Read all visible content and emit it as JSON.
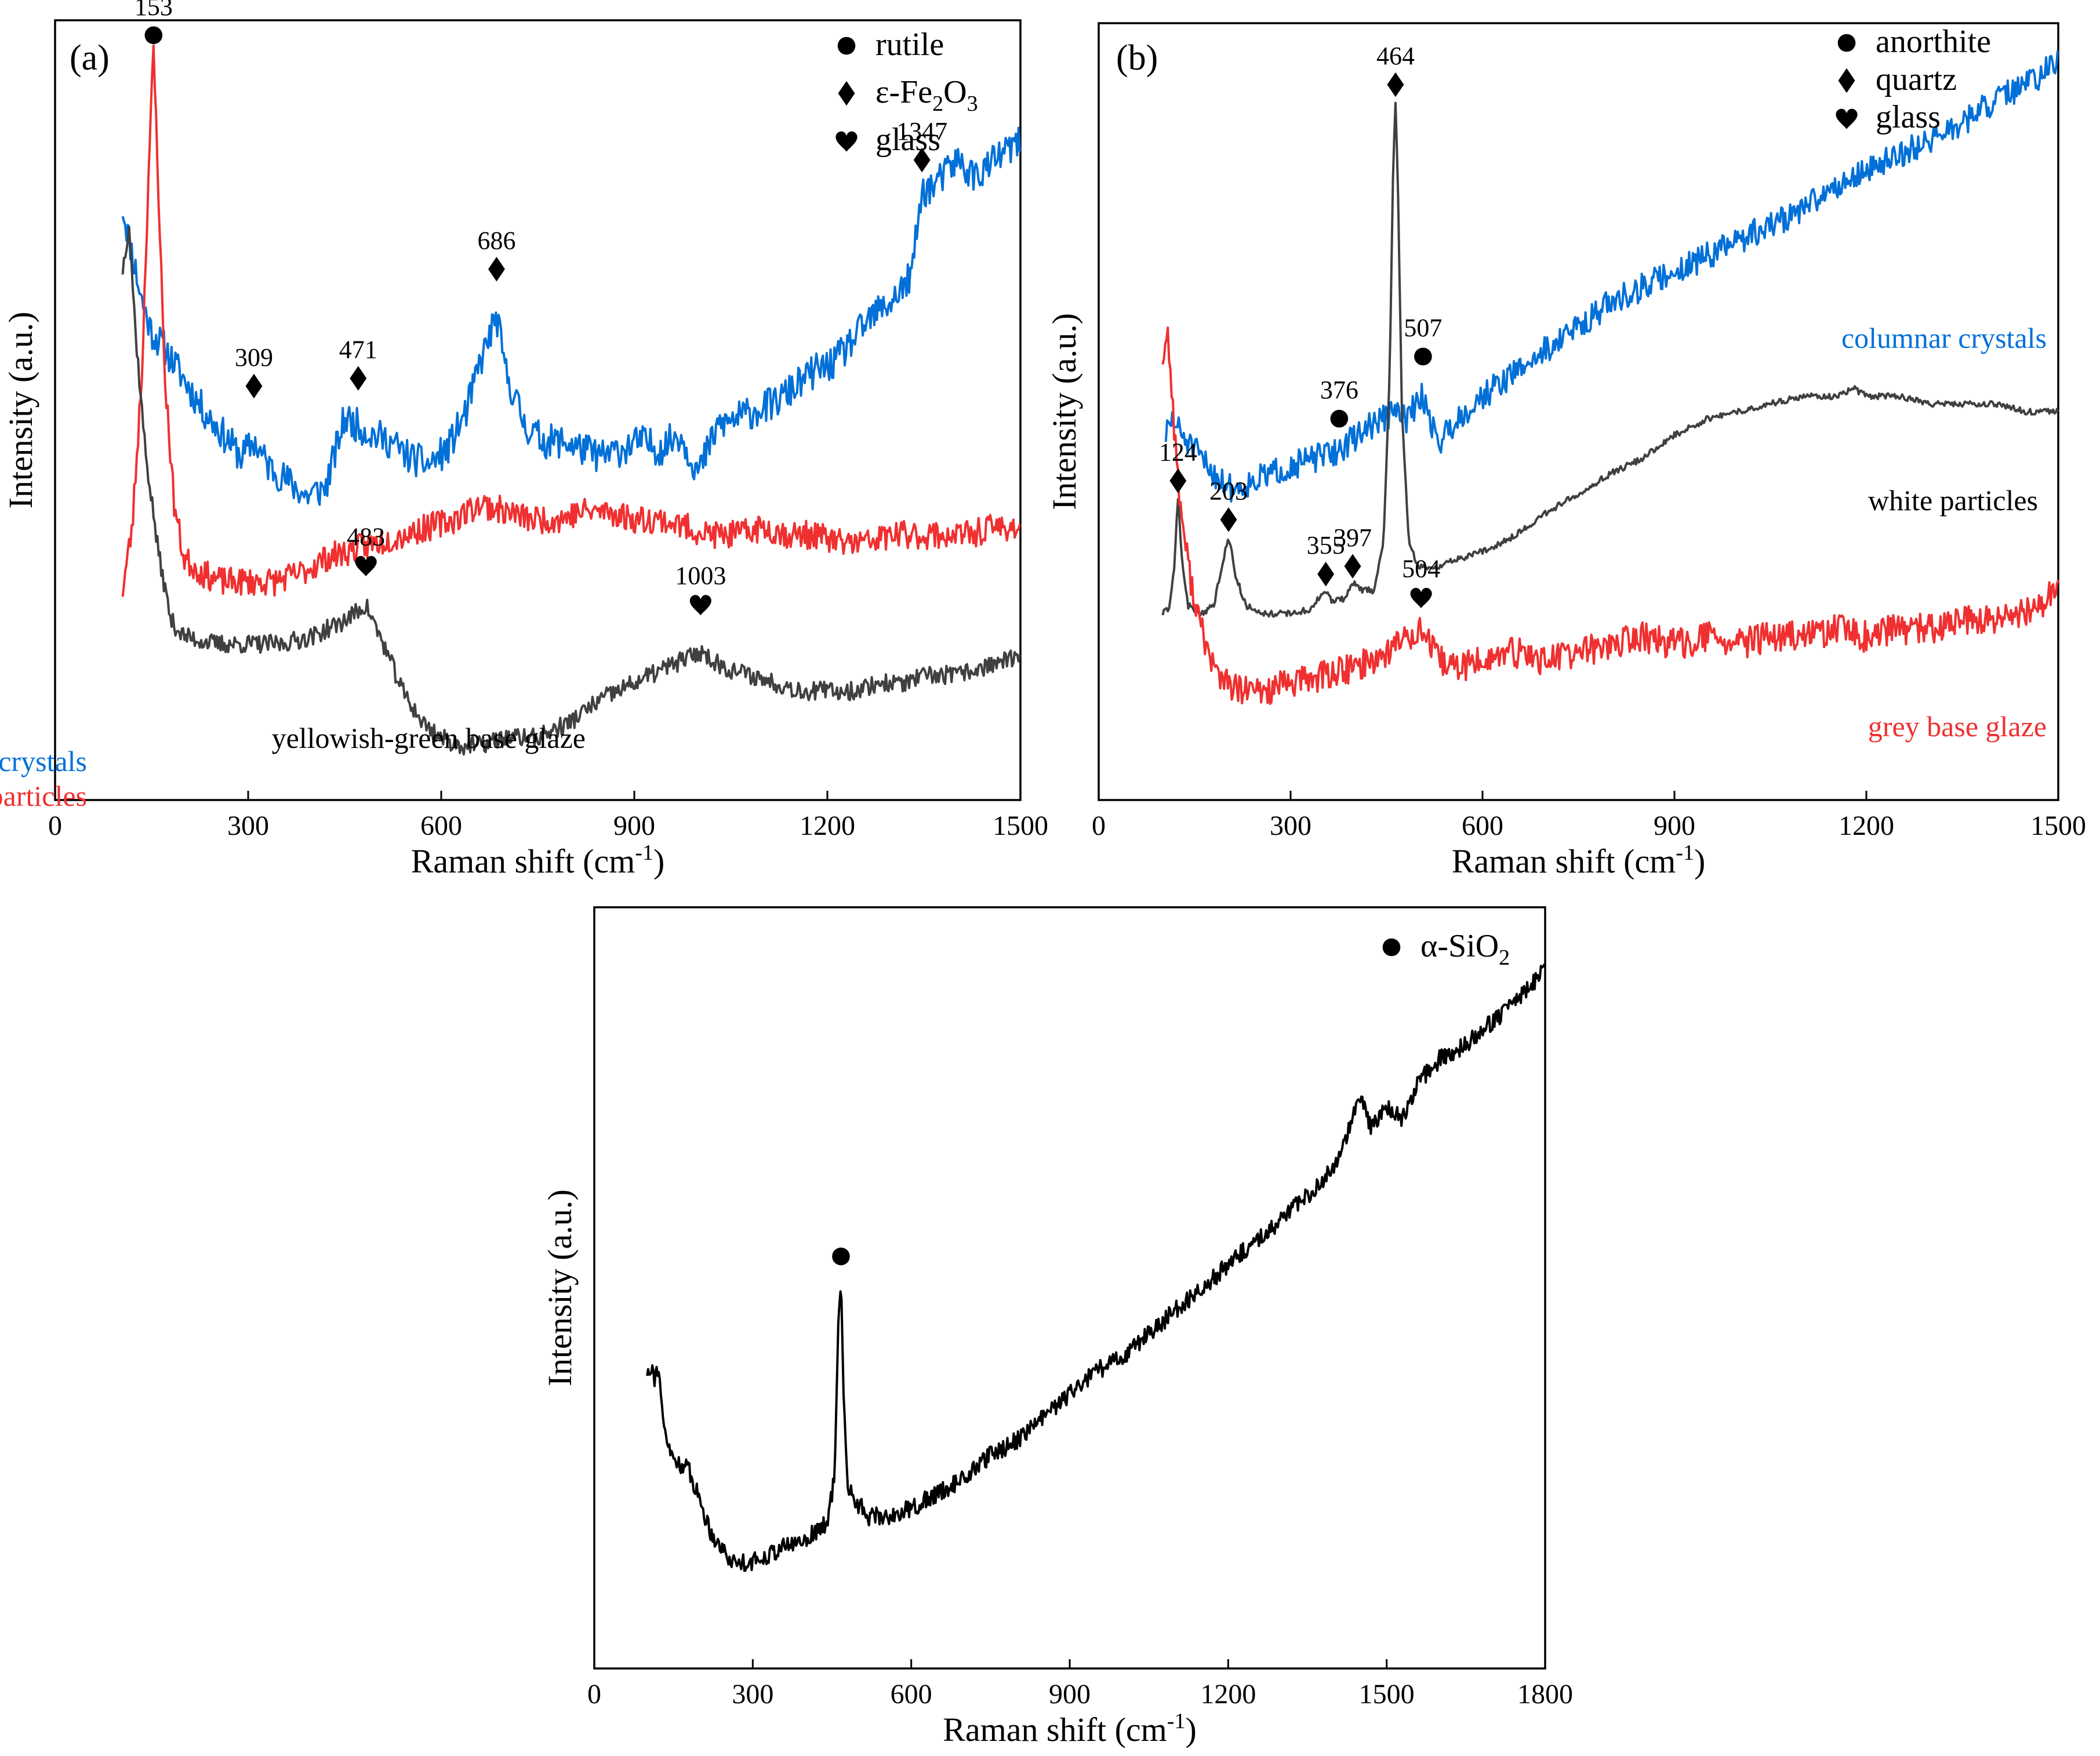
{
  "chart_data": [
    {
      "panel_label": "(a)",
      "type": "line",
      "xlabel": "Raman shift (cm",
      "xlabel_sup": "-1",
      "xlabel_end": ")",
      "ylabel": "Intensity (a.u.)",
      "xlim": [
        0,
        1500
      ],
      "xticks": [
        0,
        300,
        600,
        900,
        1200,
        1500
      ],
      "legend": [
        {
          "marker": "circle",
          "label": "rutile"
        },
        {
          "marker": "diamond",
          "label": "ε-Fe",
          "sub1": "2",
          "mid": "O",
          "sub2": "3"
        },
        {
          "marker": "heart",
          "label": "glass"
        }
      ],
      "series": [
        {
          "name": "rusty plate-like crystals",
          "color": "#0070d8",
          "x": [
            105,
            120,
            135,
            150,
            170,
            200,
            230,
            260,
            290,
            309,
            330,
            360,
            390,
            420,
            450,
            471,
            490,
            520,
            550,
            580,
            610,
            640,
            660,
            686,
            700,
            730,
            760,
            790,
            820,
            850,
            880,
            910,
            940,
            970,
            1000,
            1030,
            1060,
            1090,
            1120,
            1150,
            1180,
            1210,
            1240,
            1270,
            1300,
            1330,
            1347,
            1370,
            1400,
            1430,
            1460,
            1490,
            1500
          ],
          "y": [
            0.76,
            0.7,
            0.64,
            0.6,
            0.58,
            0.54,
            0.5,
            0.47,
            0.44,
            0.46,
            0.43,
            0.41,
            0.39,
            0.4,
            0.49,
            0.48,
            0.47,
            0.46,
            0.44,
            0.43,
            0.45,
            0.5,
            0.56,
            0.62,
            0.55,
            0.48,
            0.46,
            0.46,
            0.45,
            0.44,
            0.45,
            0.46,
            0.45,
            0.47,
            0.42,
            0.48,
            0.49,
            0.5,
            0.51,
            0.53,
            0.55,
            0.56,
            0.59,
            0.62,
            0.64,
            0.67,
            0.78,
            0.79,
            0.82,
            0.8,
            0.82,
            0.84,
            0.84
          ],
          "noise": 0.022,
          "seed": 11
        },
        {
          "name": "dark red granular particles",
          "color": "#f03030",
          "x": [
            105,
            120,
            135,
            145,
            153,
            160,
            170,
            185,
            200,
            230,
            260,
            300,
            340,
            380,
            420,
            460,
            500,
            540,
            580,
            620,
            660,
            700,
            740,
            780,
            820,
            860,
            900,
            940,
            980,
            1020,
            1060,
            1100,
            1140,
            1180,
            1220,
            1260,
            1300,
            1340,
            1380,
            1420,
            1460,
            1500
          ],
          "y": [
            0.27,
            0.35,
            0.55,
            0.8,
            0.96,
            0.8,
            0.55,
            0.38,
            0.31,
            0.29,
            0.28,
            0.28,
            0.28,
            0.29,
            0.31,
            0.32,
            0.33,
            0.34,
            0.35,
            0.36,
            0.38,
            0.37,
            0.36,
            0.36,
            0.37,
            0.37,
            0.36,
            0.36,
            0.35,
            0.34,
            0.34,
            0.35,
            0.34,
            0.34,
            0.33,
            0.33,
            0.34,
            0.34,
            0.34,
            0.34,
            0.35,
            0.35
          ],
          "noise": 0.018,
          "seed": 23
        },
        {
          "name": "yellowish-green base glaze",
          "color": "#404040",
          "x": [
            105,
            115,
            125,
            140,
            160,
            180,
            200,
            250,
            300,
            350,
            400,
            450,
            483,
            510,
            540,
            570,
            600,
            630,
            660,
            700,
            750,
            800,
            850,
            900,
            950,
            1003,
            1040,
            1080,
            1120,
            1160,
            1200,
            1240,
            1280,
            1320,
            1360,
            1400,
            1440,
            1480,
            1500
          ],
          "y": [
            0.68,
            0.74,
            0.6,
            0.45,
            0.32,
            0.23,
            0.21,
            0.2,
            0.2,
            0.2,
            0.21,
            0.23,
            0.25,
            0.2,
            0.14,
            0.1,
            0.08,
            0.07,
            0.07,
            0.08,
            0.08,
            0.1,
            0.13,
            0.15,
            0.17,
            0.19,
            0.17,
            0.16,
            0.15,
            0.14,
            0.14,
            0.14,
            0.15,
            0.15,
            0.16,
            0.16,
            0.17,
            0.18,
            0.18
          ],
          "noise": 0.012,
          "seed": 37
        }
      ],
      "series_labels": [
        {
          "text": "rusty plate-like crystals",
          "color": "#0070d8"
        },
        {
          "text": "dark red granular particles",
          "color": "#f03030"
        },
        {
          "text": "yellowish-green base glaze",
          "color": "#000000"
        }
      ],
      "annotations": [
        {
          "x": 153,
          "y": 0.96,
          "marker": "circle",
          "label": "153"
        },
        {
          "x": 309,
          "y": 0.51,
          "marker": "diamond",
          "label": "309"
        },
        {
          "x": 471,
          "y": 0.52,
          "marker": "diamond",
          "label": "471"
        },
        {
          "x": 686,
          "y": 0.66,
          "marker": "diamond",
          "label": "686"
        },
        {
          "x": 1347,
          "y": 0.8,
          "marker": "diamond",
          "label": "1347"
        },
        {
          "x": 483,
          "y": 0.28,
          "marker": "heart",
          "label": "483"
        },
        {
          "x": 1003,
          "y": 0.23,
          "marker": "heart",
          "label": "1003"
        }
      ]
    },
    {
      "panel_label": "(b)",
      "type": "line",
      "xlabel": "Raman shift (cm",
      "xlabel_sup": "-1",
      "xlabel_end": ")",
      "ylabel": "Intensity (a.u.)",
      "xlim": [
        0,
        1500
      ],
      "xticks": [
        0,
        300,
        600,
        900,
        1200,
        1500
      ],
      "legend": [
        {
          "marker": "circle",
          "label": "anorthite"
        },
        {
          "marker": "diamond",
          "label": "quartz"
        },
        {
          "marker": "heart",
          "label": "glass"
        }
      ],
      "series": [
        {
          "name": "columnar crystals",
          "color": "#0070d8",
          "x": [
            105,
            115,
            130,
            150,
            180,
            210,
            240,
            270,
            300,
            340,
            376,
            420,
            464,
            480,
            507,
            530,
            560,
            600,
            650,
            700,
            750,
            800,
            850,
            900,
            950,
            1000,
            1050,
            1100,
            1150,
            1200,
            1250,
            1300,
            1350,
            1400,
            1450,
            1500
          ],
          "y": [
            0.47,
            0.49,
            0.47,
            0.45,
            0.42,
            0.4,
            0.41,
            0.42,
            0.43,
            0.44,
            0.45,
            0.48,
            0.5,
            0.49,
            0.52,
            0.46,
            0.49,
            0.52,
            0.55,
            0.58,
            0.61,
            0.64,
            0.66,
            0.68,
            0.7,
            0.72,
            0.74,
            0.76,
            0.79,
            0.81,
            0.83,
            0.85,
            0.87,
            0.9,
            0.92,
            0.95
          ],
          "noise": 0.018,
          "seed": 51
        },
        {
          "name": "white particles",
          "color": "#404040",
          "x": [
            100,
            110,
            118,
            124,
            130,
            140,
            160,
            180,
            192,
            203,
            214,
            230,
            260,
            300,
            330,
            345,
            355,
            365,
            385,
            397,
            410,
            430,
            445,
            455,
            460,
            464,
            468,
            474,
            485,
            500,
            530,
            560,
            600,
            650,
            700,
            760,
            800,
            850,
            900,
            950,
            1000,
            1050,
            1100,
            1150,
            1180,
            1200,
            1250,
            1300,
            1350,
            1400,
            1450,
            1500
          ],
          "y": [
            0.24,
            0.245,
            0.3,
            0.39,
            0.31,
            0.25,
            0.24,
            0.25,
            0.3,
            0.34,
            0.29,
            0.25,
            0.24,
            0.24,
            0.245,
            0.26,
            0.27,
            0.255,
            0.26,
            0.28,
            0.27,
            0.27,
            0.33,
            0.55,
            0.8,
            0.9,
            0.78,
            0.5,
            0.33,
            0.3,
            0.3,
            0.31,
            0.32,
            0.34,
            0.37,
            0.4,
            0.42,
            0.44,
            0.47,
            0.49,
            0.5,
            0.51,
            0.52,
            0.52,
            0.53,
            0.52,
            0.52,
            0.51,
            0.51,
            0.51,
            0.5,
            0.5
          ],
          "noise": 0.004,
          "seed": 63
        },
        {
          "name": "grey base glaze",
          "color": "#f03030",
          "x": [
            100,
            108,
            115,
            125,
            140,
            160,
            180,
            200,
            220,
            260,
            300,
            350,
            400,
            450,
            480,
            504,
            530,
            560,
            600,
            650,
            700,
            750,
            800,
            850,
            900,
            950,
            1000,
            1050,
            1100,
            1150,
            1200,
            1250,
            1300,
            1350,
            1400,
            1450,
            1500
          ],
          "y": [
            0.57,
            0.6,
            0.52,
            0.4,
            0.3,
            0.22,
            0.17,
            0.15,
            0.14,
            0.14,
            0.15,
            0.16,
            0.17,
            0.19,
            0.21,
            0.22,
            0.18,
            0.17,
            0.18,
            0.19,
            0.18,
            0.19,
            0.2,
            0.21,
            0.2,
            0.21,
            0.2,
            0.21,
            0.21,
            0.22,
            0.21,
            0.22,
            0.22,
            0.23,
            0.23,
            0.24,
            0.27
          ],
          "noise": 0.02,
          "seed": 77
        }
      ],
      "series_labels": [
        {
          "text": "columnar crystals",
          "color": "#0070d8"
        },
        {
          "text": "white particles",
          "color": "#000000"
        },
        {
          "text": "grey base glaze",
          "color": "#f03030"
        }
      ],
      "annotations": [
        {
          "x": 124,
          "y": 0.39,
          "marker": "diamond",
          "label": "124"
        },
        {
          "x": 203,
          "y": 0.34,
          "marker": "diamond",
          "label": "203"
        },
        {
          "x": 355,
          "y": 0.27,
          "marker": "diamond",
          "label": "355"
        },
        {
          "x": 397,
          "y": 0.28,
          "marker": "diamond",
          "label": "397"
        },
        {
          "x": 376,
          "y": 0.47,
          "marker": "circle",
          "label": "376"
        },
        {
          "x": 464,
          "y": 0.9,
          "marker": "diamond",
          "label": "464"
        },
        {
          "x": 507,
          "y": 0.55,
          "marker": "circle",
          "label": "507"
        },
        {
          "x": 504,
          "y": 0.24,
          "marker": "heart",
          "label": "504"
        }
      ]
    },
    {
      "panel_label": "",
      "type": "line",
      "xlabel": "Raman shift (cm",
      "xlabel_sup": "-1",
      "xlabel_end": ")",
      "ylabel": "Intensity (a.u.)",
      "xlim": [
        0,
        1800
      ],
      "xticks": [
        0,
        300,
        600,
        900,
        1200,
        1500,
        1800
      ],
      "legend": [
        {
          "marker": "circle",
          "label": "α-SiO",
          "sub1": "2"
        }
      ],
      "series": [
        {
          "name": "α-SiO2",
          "color": "#000000",
          "x": [
            100,
            108,
            115,
            122,
            130,
            145,
            160,
            180,
            200,
            220,
            240,
            260,
            280,
            300,
            330,
            360,
            400,
            440,
            455,
            462,
            467,
            472,
            480,
            495,
            520,
            560,
            600,
            650,
            700,
            750,
            800,
            850,
            900,
            950,
            1000,
            1050,
            1100,
            1150,
            1200,
            1250,
            1300,
            1350,
            1400,
            1430,
            1450,
            1470,
            1500,
            1530,
            1560,
            1600,
            1650,
            1700,
            1750,
            1800
          ],
          "y": [
            0.39,
            0.4,
            0.38,
            0.4,
            0.32,
            0.28,
            0.27,
            0.26,
            0.22,
            0.18,
            0.16,
            0.14,
            0.14,
            0.14,
            0.15,
            0.16,
            0.17,
            0.19,
            0.25,
            0.45,
            0.52,
            0.35,
            0.24,
            0.22,
            0.2,
            0.2,
            0.21,
            0.23,
            0.25,
            0.28,
            0.3,
            0.33,
            0.36,
            0.39,
            0.41,
            0.44,
            0.47,
            0.5,
            0.53,
            0.56,
            0.59,
            0.62,
            0.66,
            0.71,
            0.75,
            0.71,
            0.74,
            0.72,
            0.77,
            0.8,
            0.82,
            0.85,
            0.88,
            0.92
          ],
          "noise": 0.012,
          "seed": 91
        }
      ],
      "series_labels": [],
      "annotations": [
        {
          "x": 467,
          "y": 0.52,
          "marker": "circle",
          "label": ""
        }
      ]
    }
  ]
}
